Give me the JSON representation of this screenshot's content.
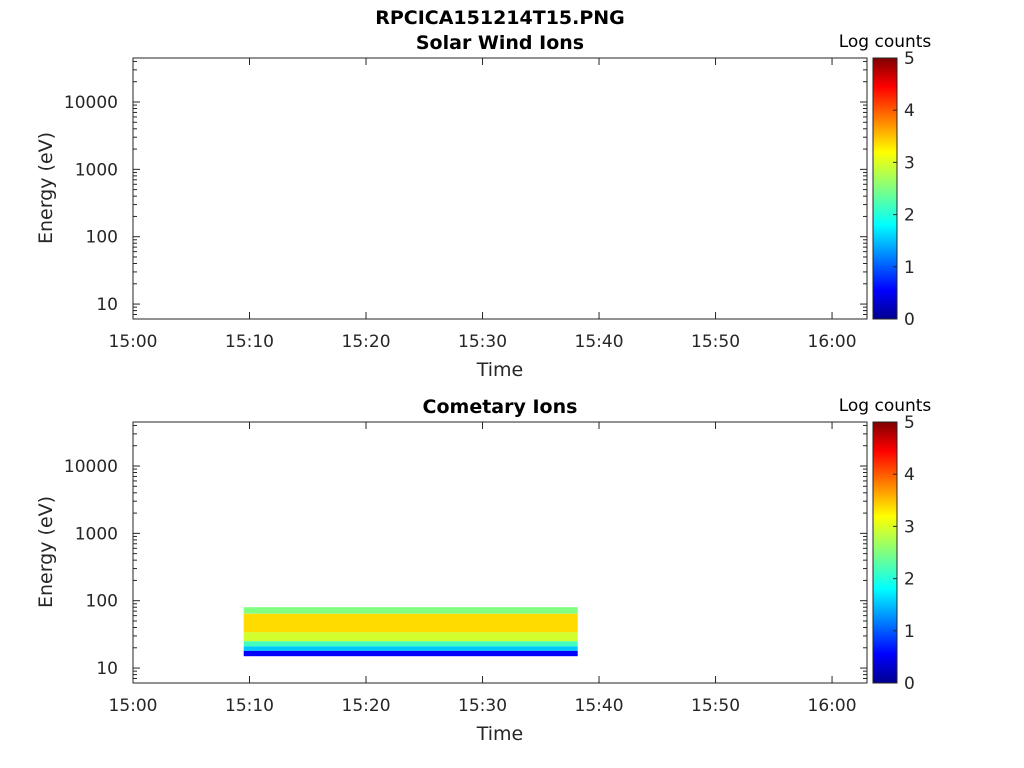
{
  "figure_title": "RPCICA151214T15.PNG",
  "chart_data": [
    {
      "type": "heatmap",
      "title": "Solar Wind Ions",
      "xlabel": "Time",
      "ylabel": "Energy (eV)",
      "x_ticks": [
        "15:00",
        "15:10",
        "15:20",
        "15:30",
        "15:40",
        "15:50",
        "16:00"
      ],
      "xlim": [
        "15:00",
        "16:03"
      ],
      "y_scale": "log",
      "y_ticks": [
        10,
        100,
        1000,
        10000
      ],
      "y_tick_labels": [
        "10",
        "100",
        "1000",
        "10000"
      ],
      "ylim": [
        6,
        45000
      ],
      "colorbar": {
        "title": "Log counts",
        "ticks": [
          "0",
          "1",
          "2",
          "3",
          "4",
          "5"
        ],
        "range": [
          0,
          5
        ],
        "colormap": "jet"
      },
      "data_extent": null,
      "band": []
    },
    {
      "type": "heatmap",
      "title": "Cometary Ions",
      "xlabel": "Time",
      "ylabel": "Energy (eV)",
      "x_ticks": [
        "15:00",
        "15:10",
        "15:20",
        "15:30",
        "15:40",
        "15:50",
        "16:00"
      ],
      "xlim": [
        "15:00",
        "16:03"
      ],
      "y_scale": "log",
      "y_ticks": [
        10,
        100,
        1000,
        10000
      ],
      "y_tick_labels": [
        "10",
        "100",
        "1000",
        "10000"
      ],
      "ylim": [
        6,
        45000
      ],
      "colorbar": {
        "title": "Log counts",
        "ticks": [
          "0",
          "1",
          "2",
          "3",
          "4",
          "5"
        ],
        "range": [
          0,
          5
        ],
        "colormap": "jet"
      },
      "data_extent": {
        "t_start": "15:09:30",
        "t_end": "15:38:10",
        "e_min": 15,
        "e_max": 80
      },
      "band": [
        {
          "e_lo": 64,
          "e_hi": 80,
          "log_counts": 2.5
        },
        {
          "e_lo": 34,
          "e_hi": 64,
          "log_counts": 3.3
        },
        {
          "e_lo": 25,
          "e_hi": 34,
          "log_counts": 2.9
        },
        {
          "e_lo": 21,
          "e_hi": 25,
          "log_counts": 2.2
        },
        {
          "e_lo": 18,
          "e_hi": 21,
          "log_counts": 1.6
        },
        {
          "e_lo": 15,
          "e_hi": 18,
          "log_counts": 0.6
        }
      ]
    }
  ]
}
